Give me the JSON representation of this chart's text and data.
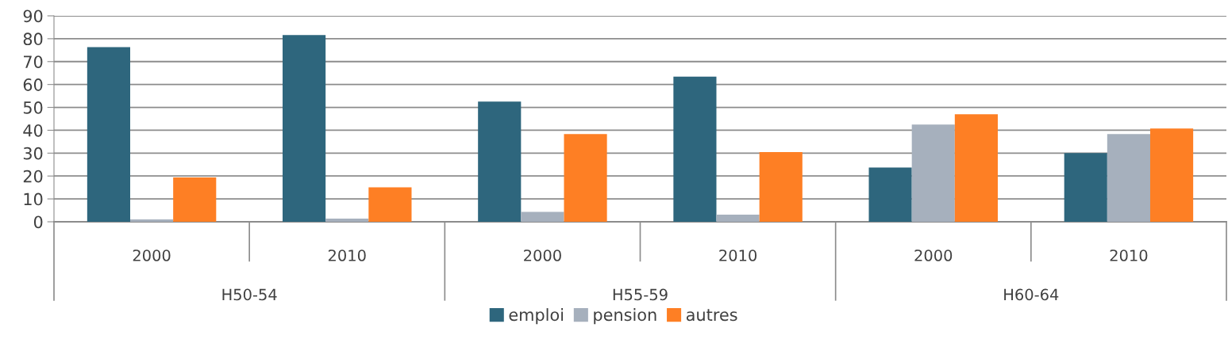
{
  "chart_data": {
    "type": "bar",
    "categories": [
      "2000",
      "2010",
      "2000",
      "2010",
      "2000",
      "2010"
    ],
    "annotations": [
      "H50-54",
      "H55-59",
      "H60-64"
    ],
    "series": [
      {
        "name": "emploi",
        "color": "#2e667d",
        "values": [
          76.3,
          81.6,
          52.5,
          63.4,
          23.7,
          30.0
        ]
      },
      {
        "name": "pension",
        "color": "#a6b0bd",
        "values": [
          1.0,
          1.4,
          4.3,
          3.1,
          42.5,
          38.3
        ]
      },
      {
        "name": "autres",
        "color": "#fe7f24",
        "values": [
          19.4,
          15.1,
          38.3,
          30.5,
          47.0,
          40.8
        ]
      }
    ],
    "ylim": [
      0,
      90
    ],
    "yticks": [
      0,
      10,
      20,
      30,
      40,
      50,
      60,
      70,
      80,
      90
    ],
    "grid": "y",
    "legend": "bottom"
  }
}
